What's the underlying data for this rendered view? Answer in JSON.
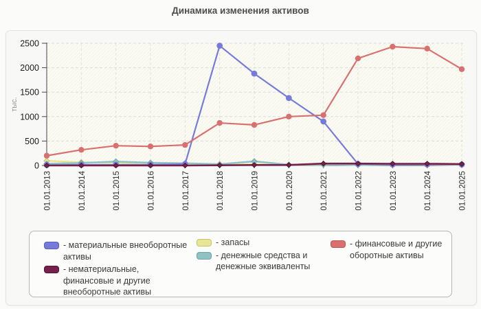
{
  "title": "Динамика изменения активов",
  "y_axis": {
    "label": "тыс.",
    "ticks": [
      0,
      500,
      1000,
      1500,
      2000,
      2500
    ]
  },
  "chart_data": {
    "type": "line",
    "title": "Динамика изменения активов",
    "ylabel": "тыс.",
    "ylim": [
      0,
      2500
    ],
    "grid": true,
    "legend_position": "bottom",
    "categories": [
      "01.01.2013",
      "01.01.2014",
      "01.01.2015",
      "01.01.2016",
      "01.01.2017",
      "01.01.2018",
      "01.01.2019",
      "01.01.2020",
      "01.01.2021",
      "01.01.2022",
      "01.01.2023",
      "01.01.2024",
      "01.01.2025"
    ],
    "draw_order": [
      2,
      3,
      0,
      1,
      4
    ],
    "series": [
      {
        "name": "материальные внеоборотные активы",
        "color": "#767bd9",
        "border": "#565cc0",
        "marker": "circle",
        "marker_size": 4.4,
        "width": 2.2,
        "values": [
          10,
          15,
          15,
          15,
          30,
          2450,
          1880,
          1380,
          900,
          30,
          20,
          20,
          20
        ]
      },
      {
        "name": "нематериальные, финансовые и другие внеоборотные активы",
        "color": "#772049",
        "border": "#521333",
        "marker": "diamond",
        "marker_size": 3.6,
        "width": 2.6,
        "values": [
          0,
          0,
          0,
          0,
          0,
          5,
          10,
          10,
          40,
          40,
          35,
          35,
          30
        ]
      },
      {
        "name": "запасы",
        "color": "#e9e597",
        "border": "#c6c167",
        "marker": "diamond",
        "marker_size": 4,
        "width": 2.6,
        "values": [
          95,
          65,
          50,
          35,
          25,
          15,
          25,
          15,
          15,
          25,
          25,
          20,
          10
        ]
      },
      {
        "name": "денежные средства и денежные эквиваленты",
        "color": "#8fc3c3",
        "border": "#69a5a5",
        "marker": "diamond",
        "marker_size": 4,
        "width": 2.6,
        "values": [
          35,
          50,
          80,
          55,
          45,
          25,
          85,
          15,
          20,
          10,
          20,
          25,
          20
        ]
      },
      {
        "name": "финансовые и другие оборотные активы",
        "color": "#d97070",
        "border": "#c25454",
        "marker": "circle",
        "marker_size": 4.2,
        "width": 2.2,
        "values": [
          200,
          320,
          405,
          390,
          420,
          870,
          830,
          1000,
          1030,
          2190,
          2430,
          2390,
          1970
        ]
      }
    ]
  },
  "legend": {
    "items": [
      {
        "series": 0,
        "label": "- материальные внеоборотные\nактивы"
      },
      {
        "series": 1,
        "label": "- нематериальные,\nфинансовые и другие\nвнеоборотные активы"
      },
      {
        "series": 2,
        "label": "- запасы"
      },
      {
        "series": 3,
        "label": "- денежные средства и\nденежные эквиваленты"
      },
      {
        "series": 4,
        "label": "- финансовые и другие\nоборотные активы"
      }
    ]
  }
}
